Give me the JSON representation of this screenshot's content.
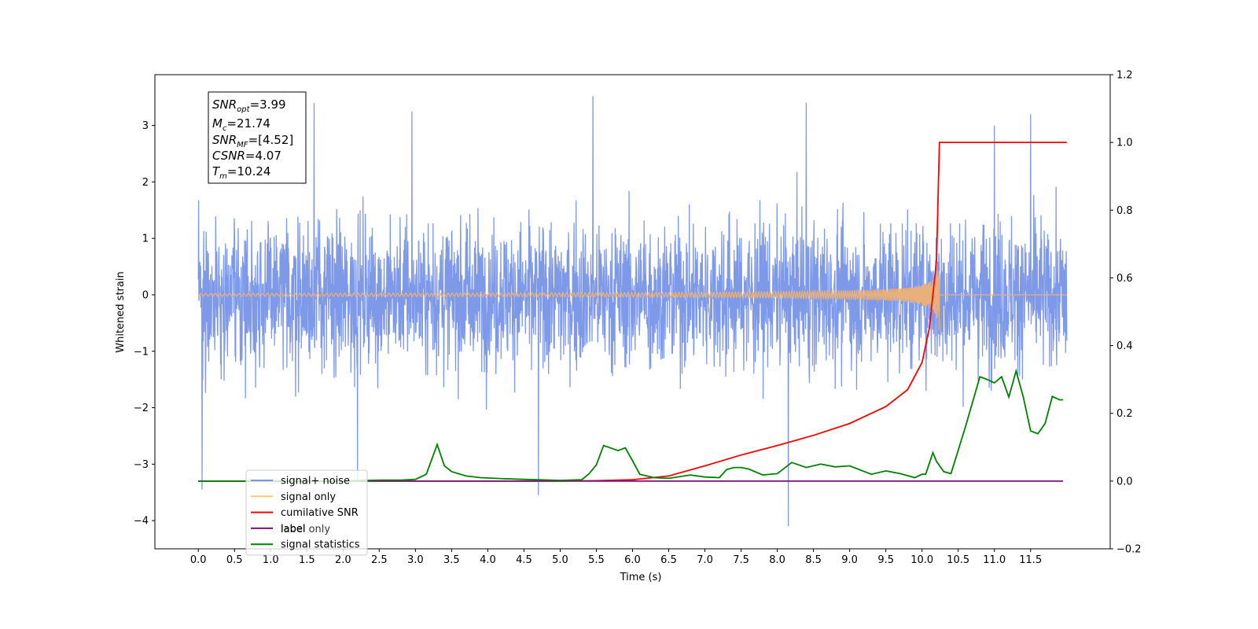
{
  "chart_data": {
    "type": "line",
    "xlabel": "Time (s)",
    "ylabel": "Whitened strain",
    "xlim": [
      -0.6,
      12.6
    ],
    "ylim": [
      -4.5,
      3.9
    ],
    "y2lim": [
      -0.2,
      1.2
    ],
    "x_ticks": [
      "0.0",
      "0.5",
      "1.0",
      "1.5",
      "2.0",
      "2.5",
      "3.0",
      "3.5",
      "4.0",
      "4.5",
      "5.0",
      "5.5",
      "6.0",
      "6.5",
      "7.0",
      "7.5",
      "8.0",
      "8.5",
      "9.0",
      "9.5",
      "10.0",
      "10.5",
      "11.0",
      "11.5"
    ],
    "y_ticks": [
      "3",
      "2",
      "1",
      "0",
      "−1",
      "−2",
      "−3",
      "−4"
    ],
    "y2_ticks": [
      "1.2",
      "1.0",
      "0.8",
      "0.6",
      "0.4",
      "0.2",
      "0.0",
      "−0.2"
    ],
    "grid": false,
    "legend_position": "lower-left",
    "annotation": {
      "snr_opt": {
        "base": "SNR",
        "sub": "opt",
        "value": "=3.99"
      },
      "mc": {
        "base": "M",
        "sub": "c",
        "value": "=21.74"
      },
      "snr_mf": {
        "base": "SNR",
        "sub": "MF",
        "value": "=[4.52]"
      },
      "csnr": {
        "base": "CSNR",
        "value": "=4.07"
      },
      "tm": {
        "base": "T",
        "sub": "m",
        "value": "=10.24"
      }
    },
    "series": [
      {
        "name": "signal+ noise",
        "color": "#7893e8",
        "axis": "left",
        "kind": "noise",
        "x_range": [
          0.0,
          12.0
        ],
        "amplitude_typical": 1.6,
        "extremes": [
          {
            "x": 0.05,
            "y": -3.45
          },
          {
            "x": 1.6,
            "y": 3.4
          },
          {
            "x": 2.2,
            "y": -3.3
          },
          {
            "x": 2.95,
            "y": 3.25
          },
          {
            "x": 4.7,
            "y": -3.55
          },
          {
            "x": 5.45,
            "y": 3.52
          },
          {
            "x": 8.15,
            "y": -4.1
          },
          {
            "x": 8.4,
            "y": 3.4
          },
          {
            "x": 11.0,
            "y": 3.0
          },
          {
            "x": 11.5,
            "y": 3.2
          }
        ]
      },
      {
        "name": "signal only",
        "color": "#e8b07a",
        "axis": "left",
        "kind": "chirp",
        "x_range": [
          0.0,
          12.0
        ],
        "merger_time": 10.24,
        "peak_amplitude": 0.75
      },
      {
        "name": "cumilative SNR",
        "color": "#ff0000",
        "axis": "right",
        "x": [
          0.0,
          5.0,
          5.5,
          6.0,
          6.5,
          7.0,
          7.5,
          8.0,
          8.5,
          9.0,
          9.5,
          9.8,
          10.0,
          10.1,
          10.2,
          10.24,
          12.0
        ],
        "y": [
          0.0,
          0.0,
          0.001,
          0.004,
          0.015,
          0.045,
          0.077,
          0.105,
          0.135,
          0.17,
          0.22,
          0.27,
          0.35,
          0.45,
          0.65,
          1.0,
          1.0
        ]
      },
      {
        "name": "label",
        "color": "#7a117a",
        "axis": "right",
        "x": [
          0.0,
          11.95
        ],
        "y": [
          0.0,
          0.0
        ]
      },
      {
        "name": "signal statistics",
        "color": "#008000",
        "axis": "right",
        "x": [
          0.0,
          2.0,
          2.5,
          2.8,
          3.0,
          3.15,
          3.3,
          3.4,
          3.5,
          3.7,
          3.9,
          4.1,
          4.5,
          5.0,
          5.3,
          5.4,
          5.5,
          5.6,
          5.8,
          5.9,
          6.0,
          6.1,
          6.3,
          6.5,
          6.8,
          7.0,
          7.2,
          7.3,
          7.4,
          7.5,
          7.6,
          7.8,
          8.0,
          8.2,
          8.4,
          8.6,
          8.8,
          9.0,
          9.3,
          9.5,
          9.7,
          9.9,
          10.0,
          10.05,
          10.15,
          10.2,
          10.3,
          10.4,
          10.6,
          10.8,
          10.9,
          11.0,
          11.1,
          11.2,
          11.3,
          11.4,
          11.5,
          11.6,
          11.7,
          11.8,
          11.9,
          11.95
        ],
        "y": [
          0.0,
          0.0,
          0.003,
          0.003,
          0.005,
          0.02,
          0.108,
          0.045,
          0.028,
          0.015,
          0.01,
          0.008,
          0.005,
          0.002,
          0.004,
          0.022,
          0.048,
          0.105,
          0.09,
          0.098,
          0.06,
          0.02,
          0.01,
          0.008,
          0.018,
          0.012,
          0.01,
          0.034,
          0.04,
          0.04,
          0.036,
          0.018,
          0.022,
          0.055,
          0.04,
          0.05,
          0.042,
          0.045,
          0.02,
          0.03,
          0.022,
          0.01,
          0.02,
          0.02,
          0.084,
          0.058,
          0.028,
          0.022,
          0.16,
          0.308,
          0.3,
          0.29,
          0.308,
          0.248,
          0.325,
          0.248,
          0.148,
          0.14,
          0.17,
          0.25,
          0.24,
          0.24
        ]
      }
    ],
    "legend": [
      {
        "label": "signal+ noise",
        "color": "#7893e8"
      },
      {
        "label": "signal only",
        "color": "#ffc870"
      },
      {
        "label": "cumilative SNR",
        "color": "#ff0000"
      },
      {
        "label": "label",
        "color": "#7a117a"
      },
      {
        "label": "signal statistics",
        "color": "#008000"
      }
    ],
    "legend_overlapped_text": "label only"
  }
}
